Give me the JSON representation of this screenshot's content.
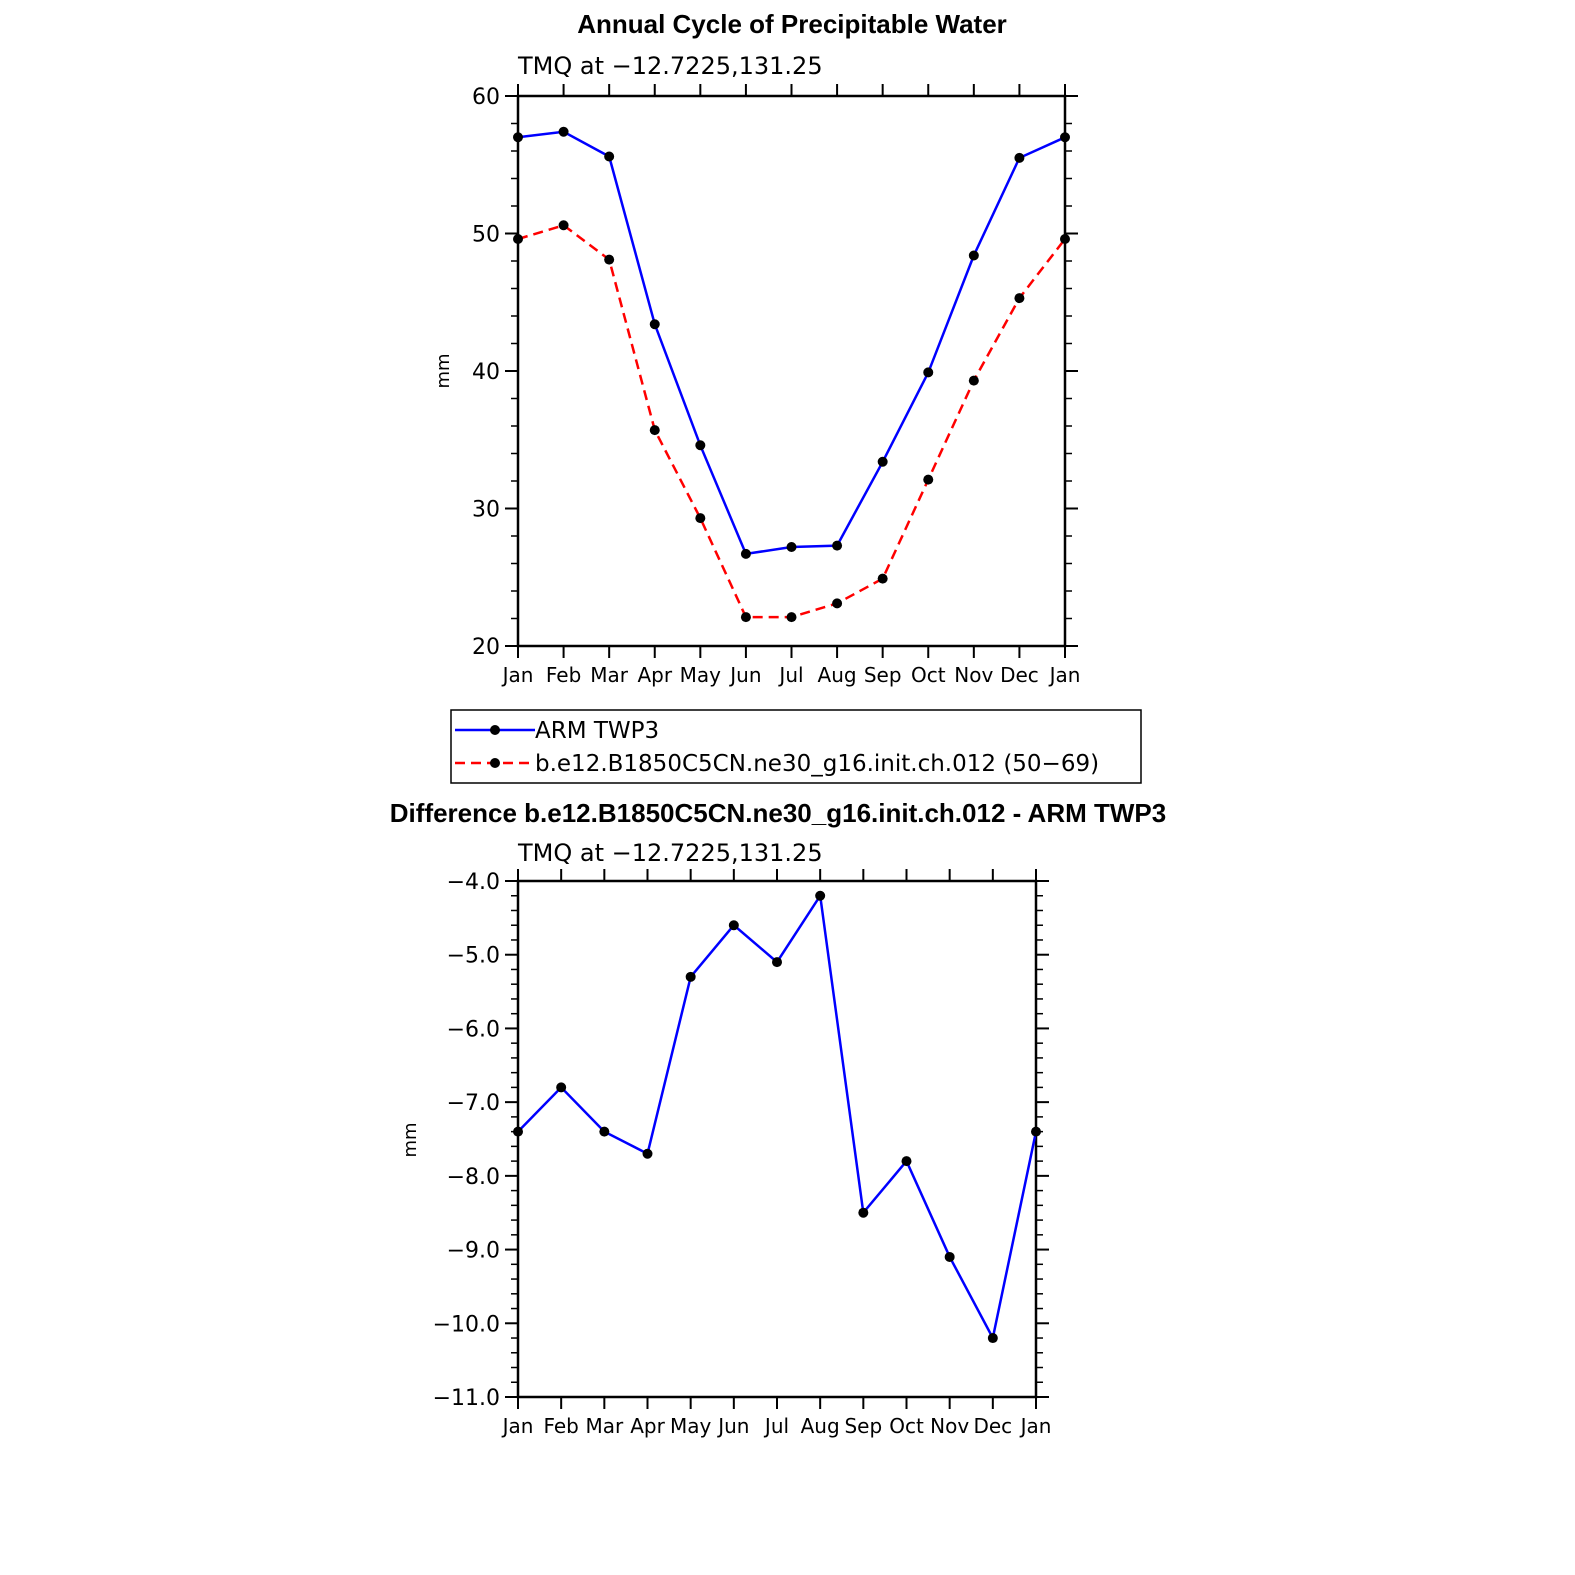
{
  "colors": {
    "obs": "#0000ff",
    "model": "#ff0000",
    "marker": "#000000",
    "diff": "#0000ff"
  },
  "chart_data": [
    {
      "type": "line",
      "title": "Annual Cycle of Precipitable Water",
      "subtitle": "TMQ at −12.7225,131.25",
      "xlabel": "",
      "ylabel": "mm",
      "categories": [
        "Jan",
        "Feb",
        "Mar",
        "Apr",
        "May",
        "Jun",
        "Jul",
        "Aug",
        "Sep",
        "Oct",
        "Nov",
        "Dec",
        "Jan"
      ],
      "ylim": [
        20,
        60
      ],
      "yticks": [
        20,
        30,
        40,
        50,
        60
      ],
      "ytick_labels": [
        "20",
        "30",
        "40",
        "50",
        "60"
      ],
      "series": [
        {
          "name": "ARM TWP3",
          "style": "solid",
          "color": "#0000ff",
          "values": [
            57.0,
            57.4,
            55.6,
            43.4,
            34.6,
            26.7,
            27.2,
            27.3,
            33.4,
            39.9,
            48.4,
            55.5,
            57.0
          ]
        },
        {
          "name": "b.e12.B1850C5CN.ne30_g16.init.ch.012 (50−69)",
          "style": "dashed",
          "color": "#ff0000",
          "values": [
            49.6,
            50.6,
            48.1,
            35.7,
            29.3,
            22.1,
            22.1,
            23.1,
            24.9,
            32.1,
            39.3,
            45.3,
            49.6
          ]
        }
      ],
      "legend": [
        "ARM TWP3",
        "b.e12.B1850C5CN.ne30_g16.init.ch.012 (50−69)"
      ]
    },
    {
      "type": "line",
      "title": "Difference b.e12.B1850C5CN.ne30_g16.init.ch.012 - ARM TWP3",
      "subtitle": "TMQ at −12.7225,131.25",
      "xlabel": "",
      "ylabel": "mm",
      "categories": [
        "Jan",
        "Feb",
        "Mar",
        "Apr",
        "May",
        "Jun",
        "Jul",
        "Aug",
        "Sep",
        "Oct",
        "Nov",
        "Dec",
        "Jan"
      ],
      "ylim": [
        -11.0,
        -4.0
      ],
      "yticks": [
        -11.0,
        -10.0,
        -9.0,
        -8.0,
        -7.0,
        -6.0,
        -5.0,
        -4.0
      ],
      "ytick_labels": [
        "−11.0",
        "−10.0",
        "−9.0",
        "−8.0",
        "−7.0",
        "−6.0",
        "−5.0",
        "−4.0"
      ],
      "series": [
        {
          "name": "Difference",
          "style": "solid",
          "color": "#0000ff",
          "values": [
            -7.4,
            -6.8,
            -7.4,
            -7.7,
            -5.3,
            -4.6,
            -5.1,
            -4.2,
            -8.5,
            -7.8,
            -9.1,
            -10.2,
            -7.4
          ]
        }
      ]
    }
  ]
}
